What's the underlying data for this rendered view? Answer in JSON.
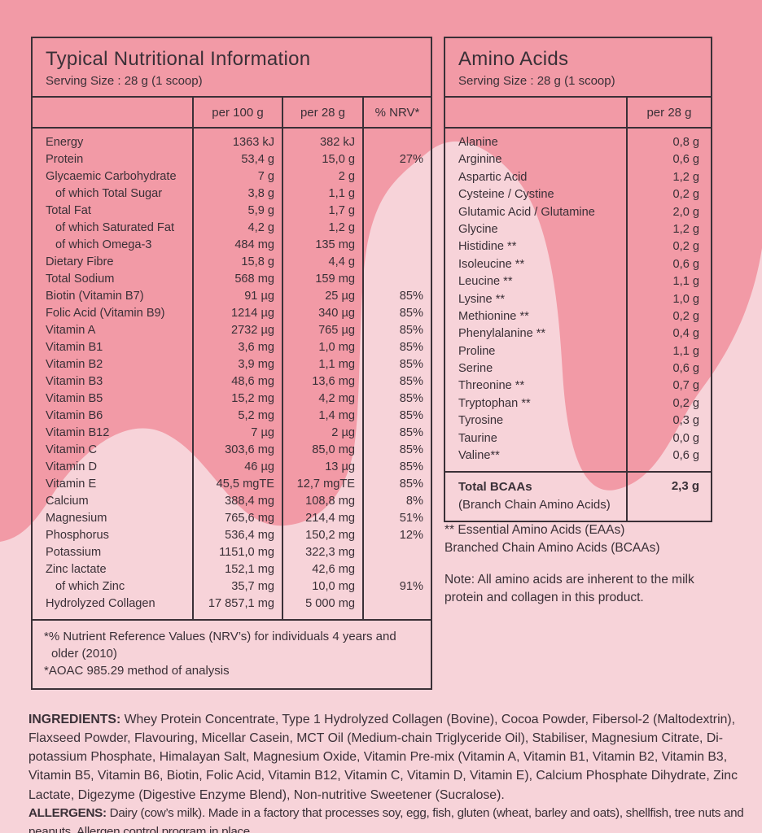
{
  "colors": {
    "background_dark": "#f29aa6",
    "background_light": "#f7d3d9",
    "ink": "#3a3037"
  },
  "nutrition_table": {
    "title": "Typical Nutritional Information",
    "serving_size": "Serving Size : 28 g (1 scoop)",
    "columns": [
      "",
      "per 100 g",
      "per 28 g",
      "% NRV*"
    ],
    "rows": [
      {
        "name": "Energy",
        "indent": false,
        "per100": "1363 kJ",
        "per28": "382 kJ",
        "nrv": ""
      },
      {
        "name": "Protein",
        "indent": false,
        "per100": "53,4 g",
        "per28": "15,0 g",
        "nrv": "27%"
      },
      {
        "name": "Glycaemic Carbohydrate",
        "indent": false,
        "per100": "7 g",
        "per28": "2 g",
        "nrv": ""
      },
      {
        "name": "of which Total Sugar",
        "indent": true,
        "per100": "3,8 g",
        "per28": "1,1 g",
        "nrv": ""
      },
      {
        "name": "Total Fat",
        "indent": false,
        "per100": "5,9 g",
        "per28": "1,7 g",
        "nrv": ""
      },
      {
        "name": "of which Saturated Fat",
        "indent": true,
        "per100": "4,2 g",
        "per28": "1,2 g",
        "nrv": ""
      },
      {
        "name": "of which Omega-3",
        "indent": true,
        "per100": "484 mg",
        "per28": "135 mg",
        "nrv": ""
      },
      {
        "name": "Dietary Fibre",
        "indent": false,
        "per100": "15,8 g",
        "per28": "4,4 g",
        "nrv": ""
      },
      {
        "name": "Total Sodium",
        "indent": false,
        "per100": "568 mg",
        "per28": "159 mg",
        "nrv": ""
      },
      {
        "name": "Biotin (Vitamin B7)",
        "indent": false,
        "per100": "91 µg",
        "per28": "25 µg",
        "nrv": "85%"
      },
      {
        "name": "Folic Acid (Vitamin B9)",
        "indent": false,
        "per100": "1214 µg",
        "per28": "340 µg",
        "nrv": "85%"
      },
      {
        "name": "Vitamin A",
        "indent": false,
        "per100": "2732 µg",
        "per28": "765 µg",
        "nrv": "85%"
      },
      {
        "name": "Vitamin B1",
        "indent": false,
        "per100": "3,6 mg",
        "per28": "1,0 mg",
        "nrv": "85%"
      },
      {
        "name": "Vitamin B2",
        "indent": false,
        "per100": "3,9 mg",
        "per28": "1,1 mg",
        "nrv": "85%"
      },
      {
        "name": "Vitamin B3",
        "indent": false,
        "per100": "48,6 mg",
        "per28": "13,6 mg",
        "nrv": "85%"
      },
      {
        "name": "Vitamin B5",
        "indent": false,
        "per100": "15,2 mg",
        "per28": "4,2 mg",
        "nrv": "85%"
      },
      {
        "name": "Vitamin B6",
        "indent": false,
        "per100": "5,2 mg",
        "per28": "1,4 mg",
        "nrv": "85%"
      },
      {
        "name": "Vitamin B12",
        "indent": false,
        "per100": "7 µg",
        "per28": "2 µg",
        "nrv": "85%"
      },
      {
        "name": "Vitamin C",
        "indent": false,
        "per100": "303,6 mg",
        "per28": "85,0 mg",
        "nrv": "85%"
      },
      {
        "name": "Vitamin D",
        "indent": false,
        "per100": "46 µg",
        "per28": "13 µg",
        "nrv": "85%"
      },
      {
        "name": "Vitamin E",
        "indent": false,
        "per100": "45,5 mgTE",
        "per28": "12,7 mgTE",
        "nrv": "85%"
      },
      {
        "name": "Calcium",
        "indent": false,
        "per100": "388,4 mg",
        "per28": "108,8 mg",
        "nrv": "8%"
      },
      {
        "name": "Magnesium",
        "indent": false,
        "per100": "765,6 mg",
        "per28": "214,4 mg",
        "nrv": "51%"
      },
      {
        "name": "Phosphorus",
        "indent": false,
        "per100": "536,4 mg",
        "per28": "150,2 mg",
        "nrv": "12%"
      },
      {
        "name": "Potassium",
        "indent": false,
        "per100": "1151,0 mg",
        "per28": "322,3 mg",
        "nrv": ""
      },
      {
        "name": "Zinc lactate",
        "indent": false,
        "per100": "152,1 mg",
        "per28": "42,6 mg",
        "nrv": ""
      },
      {
        "name": "of which Zinc",
        "indent": true,
        "per100": "35,7 mg",
        "per28": "10,0 mg",
        "nrv": "91%"
      },
      {
        "name": "Hydrolyzed Collagen",
        "indent": false,
        "per100": "17 857,1 mg",
        "per28": "5 000 mg",
        "nrv": ""
      }
    ],
    "footnotes": [
      "*% Nutrient Reference Values (NRV’s) for individuals 4 years and older (2010)",
      "*AOAC 985.29 method of analysis"
    ]
  },
  "amino_table": {
    "title": "Amino Acids",
    "serving_size": "Serving Size : 28 g (1 scoop)",
    "columns": [
      "",
      "per 28 g"
    ],
    "rows": [
      {
        "name": "Alanine",
        "value": "0,8 g"
      },
      {
        "name": "Arginine",
        "value": "0,6 g"
      },
      {
        "name": "Aspartic Acid",
        "value": "1,2 g"
      },
      {
        "name": "Cysteine / Cystine",
        "value": "0,2 g"
      },
      {
        "name": "Glutamic Acid / Glutamine",
        "value": "2,0 g"
      },
      {
        "name": "Glycine",
        "value": "1,2 g"
      },
      {
        "name": "Histidine **",
        "value": "0,2 g"
      },
      {
        "name": "Isoleucine **",
        "value": "0,6 g"
      },
      {
        "name": "Leucine **",
        "value": "1,1 g"
      },
      {
        "name": "Lysine **",
        "value": "1,0 g"
      },
      {
        "name": "Methionine **",
        "value": "0,2 g"
      },
      {
        "name": "Phenylalanine **",
        "value": "0,4 g"
      },
      {
        "name": "Proline",
        "value": "1,1 g"
      },
      {
        "name": "Serine",
        "value": "0,6 g"
      },
      {
        "name": "Threonine **",
        "value": "0,7 g"
      },
      {
        "name": "Tryptophan **",
        "value": "0,2 g"
      },
      {
        "name": "Tyrosine",
        "value": "0,3 g"
      },
      {
        "name": "Taurine",
        "value": "0,0 g"
      },
      {
        "name": "Valine**",
        "value": "0,6 g"
      }
    ],
    "total": {
      "name": "Total BCAAs",
      "subname": "(Branch Chain Amino Acids)",
      "value": "2,3 g"
    },
    "legend": [
      "** Essential Amino Acids (EAAs)",
      "Branched Chain Amino Acids (BCAAs)"
    ],
    "note": "Note: All amino acids are inherent to the milk protein and collagen in this product."
  },
  "ingredients": {
    "label": "INGREDIENTS:",
    "text": " Whey Protein Concentrate, Type 1 Hydrolyzed Collagen (Bovine), Cocoa Powder, Fibersol-2 (Maltodextrin), Flaxseed Powder, Flavouring, Micellar Casein, MCT Oil (Medium-chain Triglyceride Oil), Stabiliser, Magnesium Citrate, Di-potassium Phosphate, Himalayan Salt, Magnesium Oxide, Vitamin Pre-mix (Vitamin A, Vitamin B1, Vitamin B2, Vitamin B3, Vitamin B5, Vitamin B6, Biotin, Folic Acid, Vitamin B12, Vitamin C, Vitamin D, Vitamin E), Calcium Phosphate Dihydrate, Zinc Lactate, Digezyme (Digestive Enzyme Blend), Non-nutritive Sweetener (Sucralose)."
  },
  "allergens": {
    "label": "ALLERGENS:",
    "text": " Dairy (cow’s milk). Made in a factory that processes soy, egg, fish, gluten (wheat, barley and oats), shellfish, tree nuts and peanuts. Allergen control program in place."
  }
}
